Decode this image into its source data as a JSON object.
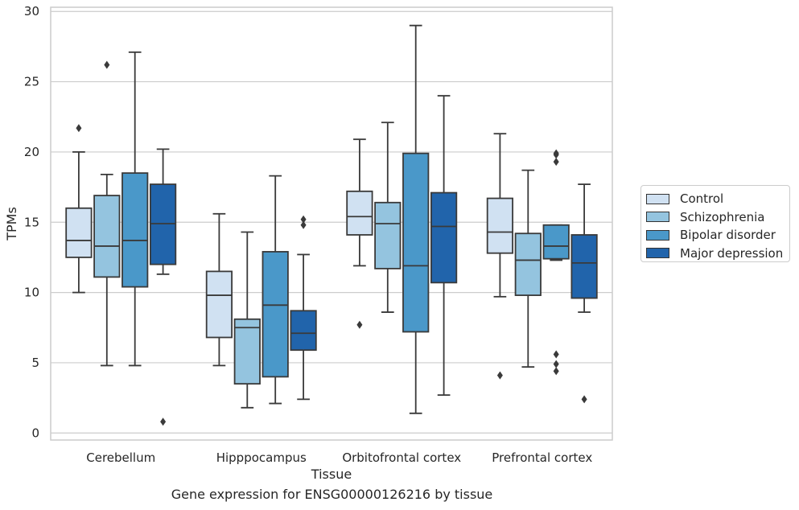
{
  "chart_data": {
    "type": "box",
    "title": "Gene expression for ENSG00000126216 by tissue",
    "xlabel": "Tissue",
    "ylabel": "TPMs",
    "ylim": [
      -0.5,
      30.3
    ],
    "yticks": [
      0,
      5,
      10,
      15,
      20,
      25,
      30
    ],
    "grid": "horizontal",
    "legend_placement": "right",
    "categories": [
      "Cerebellum",
      "Hipppocampus",
      "Orbitofrontal cortex",
      "Prefrontal cortex"
    ],
    "series": [
      {
        "name": "Control",
        "color": "#d0e1f2",
        "boxes": [
          {
            "whisker_low": 10.0,
            "q1": 12.5,
            "median": 13.7,
            "q3": 16.0,
            "whisker_high": 20.0,
            "outliers": [
              21.7
            ]
          },
          {
            "whisker_low": 4.8,
            "q1": 6.8,
            "median": 9.8,
            "q3": 11.5,
            "whisker_high": 15.6,
            "outliers": []
          },
          {
            "whisker_low": 11.9,
            "q1": 14.1,
            "median": 15.4,
            "q3": 17.2,
            "whisker_high": 20.9,
            "outliers": [
              7.7
            ]
          },
          {
            "whisker_low": 9.7,
            "q1": 12.8,
            "median": 14.3,
            "q3": 16.7,
            "whisker_high": 21.3,
            "outliers": [
              4.1
            ]
          }
        ]
      },
      {
        "name": "Schizophrenia",
        "color": "#94c4df",
        "boxes": [
          {
            "whisker_low": 4.8,
            "q1": 11.1,
            "median": 13.3,
            "q3": 16.9,
            "whisker_high": 18.4,
            "outliers": [
              26.2
            ]
          },
          {
            "whisker_low": 1.8,
            "q1": 3.5,
            "median": 7.5,
            "q3": 8.1,
            "whisker_high": 14.3,
            "outliers": []
          },
          {
            "whisker_low": 8.6,
            "q1": 11.7,
            "median": 14.9,
            "q3": 16.4,
            "whisker_high": 22.1,
            "outliers": []
          },
          {
            "whisker_low": 4.7,
            "q1": 9.8,
            "median": 12.3,
            "q3": 14.2,
            "whisker_high": 18.7,
            "outliers": []
          }
        ]
      },
      {
        "name": "Bipolar disorder",
        "color": "#4a98c9",
        "boxes": [
          {
            "whisker_low": 4.8,
            "q1": 10.4,
            "median": 13.7,
            "q3": 18.5,
            "whisker_high": 27.1,
            "outliers": []
          },
          {
            "whisker_low": 2.1,
            "q1": 4.0,
            "median": 9.1,
            "q3": 12.9,
            "whisker_high": 18.3,
            "outliers": []
          },
          {
            "whisker_low": 1.4,
            "q1": 7.2,
            "median": 11.9,
            "q3": 19.9,
            "whisker_high": 29.0,
            "outliers": []
          },
          {
            "whisker_low": 12.3,
            "q1": 12.4,
            "median": 13.3,
            "q3": 14.8,
            "whisker_high": 14.8,
            "outliers": [
              19.3,
              19.8,
              19.9,
              5.6,
              4.9,
              4.4
            ]
          }
        ]
      },
      {
        "name": "Major depression",
        "color": "#2164ab",
        "boxes": [
          {
            "whisker_low": 11.3,
            "q1": 12.0,
            "median": 14.9,
            "q3": 17.7,
            "whisker_high": 20.2,
            "outliers": [
              0.8
            ]
          },
          {
            "whisker_low": 2.4,
            "q1": 5.9,
            "median": 7.1,
            "q3": 8.7,
            "whisker_high": 12.7,
            "outliers": [
              14.8,
              15.2
            ]
          },
          {
            "whisker_low": 2.7,
            "q1": 10.7,
            "median": 14.7,
            "q3": 17.1,
            "whisker_high": 24.0,
            "outliers": []
          },
          {
            "whisker_low": 8.6,
            "q1": 9.6,
            "median": 12.1,
            "q3": 14.1,
            "whisker_high": 17.7,
            "outliers": [
              2.4
            ]
          }
        ]
      }
    ]
  }
}
